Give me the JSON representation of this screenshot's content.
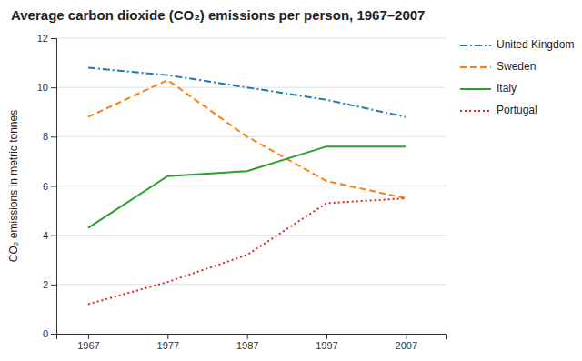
{
  "chart_data": {
    "type": "line",
    "title": "Average carbon dioxide (CO₂) emissions per person, 1967–2007",
    "ylabel": "CO₂ emissions in metric tonnes",
    "x": [
      1967,
      1977,
      1987,
      1997,
      2007
    ],
    "series": [
      {
        "name": "United Kingdom",
        "line_style": "dashdot",
        "values": [
          10.8,
          10.5,
          10.0,
          9.5,
          8.8
        ]
      },
      {
        "name": "Sweden",
        "line_style": "dashed",
        "values": [
          8.8,
          10.3,
          8.0,
          6.2,
          5.5
        ]
      },
      {
        "name": "Italy",
        "line_style": "solid",
        "values": [
          4.3,
          6.4,
          6.6,
          7.6,
          7.6
        ]
      },
      {
        "name": "Portugal",
        "line_style": "dotted",
        "values": [
          1.2,
          2.1,
          3.2,
          5.3,
          5.5
        ]
      }
    ],
    "xlim": [
      1963,
      2012
    ],
    "xticks": [
      1967,
      1977,
      1987,
      1997,
      2007
    ],
    "ylim": [
      0,
      12
    ],
    "yticks": [
      0,
      2,
      4,
      6,
      8,
      10,
      12
    ],
    "grid": "y",
    "legend": "right"
  }
}
